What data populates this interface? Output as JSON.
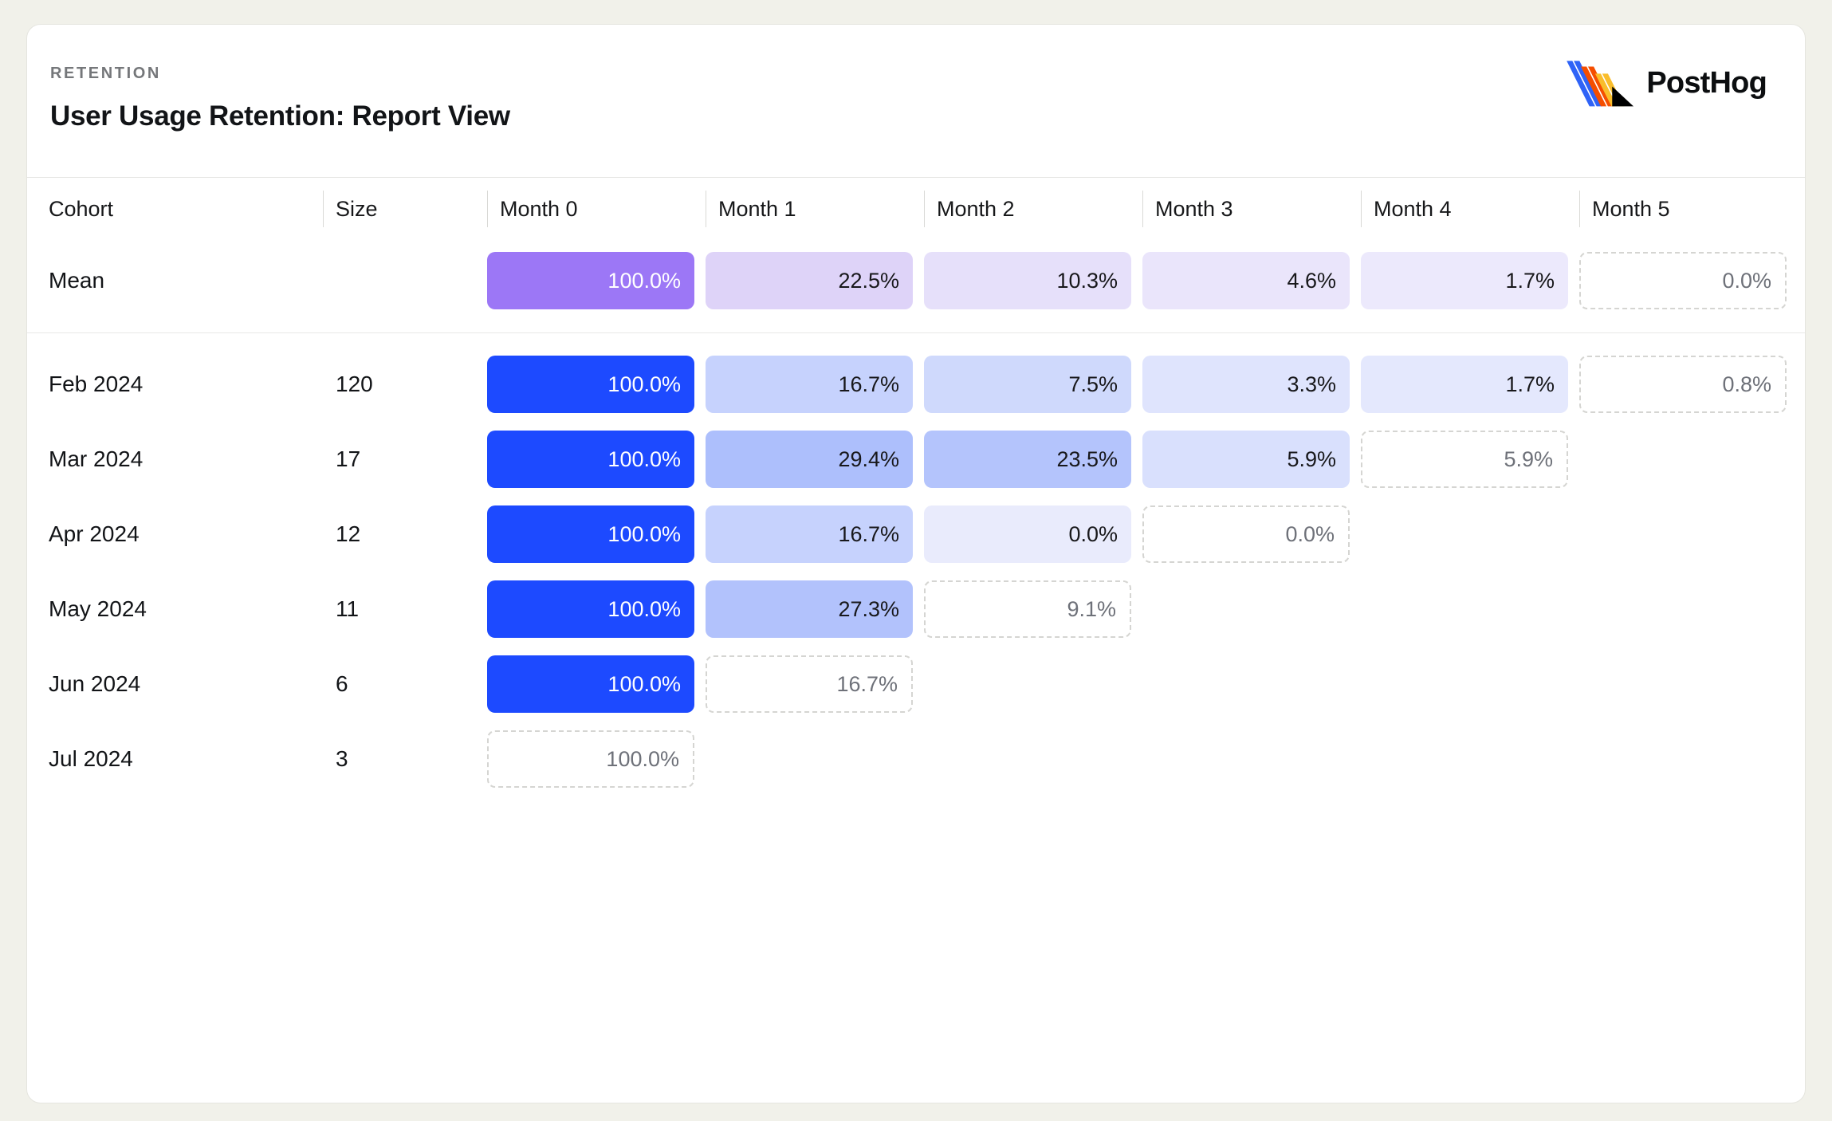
{
  "page_background": "#f1f1ea",
  "header": {
    "kicker": "RETENTION",
    "title": "User Usage Retention: Report View",
    "brand_name": "PostHog",
    "logo_colors": {
      "blue": "#2f63f7",
      "orange": "#f54e00",
      "yellow": "#f9bd2b",
      "black": "#000000"
    }
  },
  "accent_colors": {
    "cohort_full": "#1d4aff",
    "mean_full": "#9c77f6",
    "dashed_border": "#d5d5d2",
    "dashed_text": "#6e7179",
    "cell_text_dark": "#18181b",
    "cell_text_light": "#ffffff"
  },
  "table": {
    "columns": [
      "Cohort",
      "Size",
      "Month 0",
      "Month 1",
      "Month 2",
      "Month 3",
      "Month 4",
      "Month 5"
    ],
    "rows": [
      {
        "label": "Mean",
        "size": "",
        "separator_after": true,
        "cells": [
          {
            "value": "100.0%",
            "bg": "#9c77f6",
            "fg": "#ffffff",
            "variant": "filled"
          },
          {
            "value": "22.5%",
            "bg": "#ded3f8",
            "fg": "#18181b",
            "variant": "filled"
          },
          {
            "value": "10.3%",
            "bg": "#e6e0fa",
            "fg": "#18181b",
            "variant": "filled"
          },
          {
            "value": "4.6%",
            "bg": "#eae5fb",
            "fg": "#18181b",
            "variant": "filled"
          },
          {
            "value": "1.7%",
            "bg": "#ece9fc",
            "fg": "#18181b",
            "variant": "filled"
          },
          {
            "value": "0.0%",
            "bg": "#ffffff",
            "fg": "#6e7179",
            "variant": "dashed"
          }
        ]
      },
      {
        "label": "Feb 2024",
        "size": "120",
        "cells": [
          {
            "value": "100.0%",
            "bg": "#1d4aff",
            "fg": "#ffffff",
            "variant": "filled"
          },
          {
            "value": "16.7%",
            "bg": "#c6d2fd",
            "fg": "#18181b",
            "variant": "filled"
          },
          {
            "value": "7.5%",
            "bg": "#cfd9fc",
            "fg": "#18181b",
            "variant": "filled"
          },
          {
            "value": "3.3%",
            "bg": "#dfe4fd",
            "fg": "#18181b",
            "variant": "filled"
          },
          {
            "value": "1.7%",
            "bg": "#e4e8fd",
            "fg": "#18181b",
            "variant": "filled"
          },
          {
            "value": "0.8%",
            "bg": "#ffffff",
            "fg": "#6e7179",
            "variant": "dashed"
          }
        ]
      },
      {
        "label": "Mar 2024",
        "size": "17",
        "cells": [
          {
            "value": "100.0%",
            "bg": "#1d4aff",
            "fg": "#ffffff",
            "variant": "filled"
          },
          {
            "value": "29.4%",
            "bg": "#adbffc",
            "fg": "#18181b",
            "variant": "filled"
          },
          {
            "value": "23.5%",
            "bg": "#b4c4fc",
            "fg": "#18181b",
            "variant": "filled"
          },
          {
            "value": "5.9%",
            "bg": "#d9e0fd",
            "fg": "#18181b",
            "variant": "filled"
          },
          {
            "value": "5.9%",
            "bg": "#ffffff",
            "fg": "#6e7179",
            "variant": "dashed"
          }
        ]
      },
      {
        "label": "Apr 2024",
        "size": "12",
        "cells": [
          {
            "value": "100.0%",
            "bg": "#1d4aff",
            "fg": "#ffffff",
            "variant": "filled"
          },
          {
            "value": "16.7%",
            "bg": "#c6d2fd",
            "fg": "#18181b",
            "variant": "filled"
          },
          {
            "value": "0.0%",
            "bg": "#e9ebfc",
            "fg": "#18181b",
            "variant": "filled"
          },
          {
            "value": "0.0%",
            "bg": "#ffffff",
            "fg": "#6e7179",
            "variant": "dashed"
          }
        ]
      },
      {
        "label": "May 2024",
        "size": "11",
        "cells": [
          {
            "value": "100.0%",
            "bg": "#1d4aff",
            "fg": "#ffffff",
            "variant": "filled"
          },
          {
            "value": "27.3%",
            "bg": "#b2c2fc",
            "fg": "#18181b",
            "variant": "filled"
          },
          {
            "value": "9.1%",
            "bg": "#ffffff",
            "fg": "#6e7179",
            "variant": "dashed"
          }
        ]
      },
      {
        "label": "Jun 2024",
        "size": "6",
        "cells": [
          {
            "value": "100.0%",
            "bg": "#1d4aff",
            "fg": "#ffffff",
            "variant": "filled"
          },
          {
            "value": "16.7%",
            "bg": "#ffffff",
            "fg": "#6e7179",
            "variant": "dashed"
          }
        ]
      },
      {
        "label": "Jul 2024",
        "size": "3",
        "cells": [
          {
            "value": "100.0%",
            "bg": "#ffffff",
            "fg": "#6e7179",
            "variant": "dashed"
          }
        ]
      }
    ]
  },
  "chart_data": {
    "type": "heatmap",
    "title": "User Usage Retention: Report View",
    "subtitle": "RETENTION",
    "columns": [
      "Month 0",
      "Month 1",
      "Month 2",
      "Month 3",
      "Month 4",
      "Month 5"
    ],
    "rows": [
      {
        "cohort": "Mean",
        "size": null,
        "values_pct": [
          100.0,
          22.5,
          10.3,
          4.6,
          1.7,
          0.0
        ],
        "incomplete_periods": [
          "Month 5"
        ]
      },
      {
        "cohort": "Feb 2024",
        "size": 120,
        "values_pct": [
          100.0,
          16.7,
          7.5,
          3.3,
          1.7,
          0.8
        ],
        "incomplete_periods": [
          "Month 5"
        ]
      },
      {
        "cohort": "Mar 2024",
        "size": 17,
        "values_pct": [
          100.0,
          29.4,
          23.5,
          5.9,
          5.9
        ],
        "incomplete_periods": [
          "Month 4"
        ]
      },
      {
        "cohort": "Apr 2024",
        "size": 12,
        "values_pct": [
          100.0,
          16.7,
          0.0,
          0.0
        ],
        "incomplete_periods": [
          "Month 3"
        ]
      },
      {
        "cohort": "May 2024",
        "size": 11,
        "values_pct": [
          100.0,
          27.3,
          9.1
        ],
        "incomplete_periods": [
          "Month 2"
        ]
      },
      {
        "cohort": "Jun 2024",
        "size": 6,
        "values_pct": [
          100.0,
          16.7
        ],
        "incomplete_periods": [
          "Month 1"
        ]
      },
      {
        "cohort": "Jul 2024",
        "size": 3,
        "values_pct": [
          100.0
        ],
        "incomplete_periods": [
          "Month 0"
        ]
      }
    ],
    "legend_position": "none",
    "grid": false,
    "color_scale": {
      "cohort_rows": "white → #1d4aff by retention %",
      "mean_row": "white → #9c77f6 by retention %"
    }
  }
}
